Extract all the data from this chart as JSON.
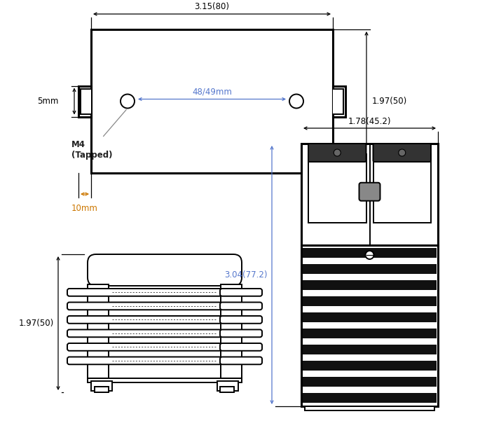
{
  "bg_color": "#ffffff",
  "line_color": "#000000",
  "dim_color": "#5577cc",
  "annotation_color": "#cc7700",
  "figsize": [
    6.95,
    6.21
  ],
  "dpi": 100,
  "labels": {
    "top_width": "3.15(80)",
    "top_height": "1.97(50)",
    "top_holes": "48/49mm",
    "top_5mm": "5mm",
    "top_10mm": "10mm",
    "top_m4": "M4\n(Tapped)",
    "front_height": "1.97(50)",
    "side_width": "1.78(45.2)",
    "side_height": "3.04(77.2)"
  }
}
